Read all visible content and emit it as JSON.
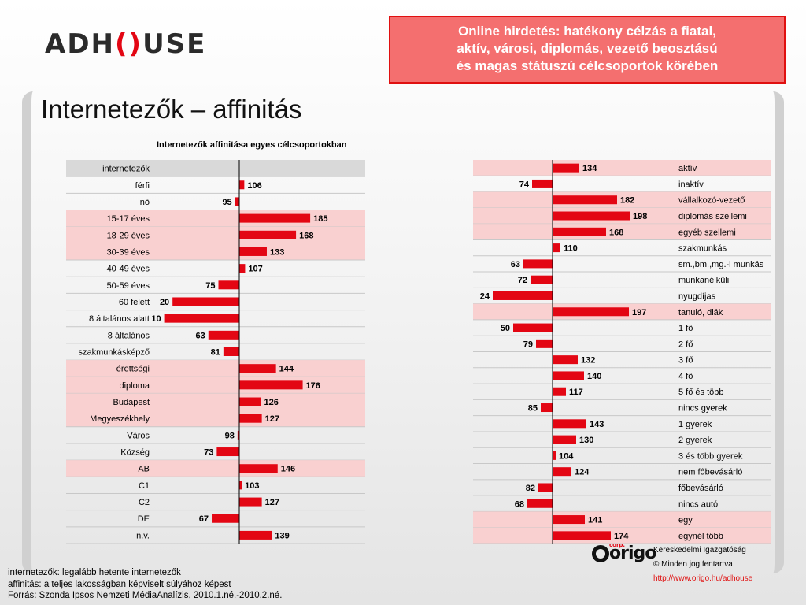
{
  "logo": {
    "before": "ADH",
    "mark": "()",
    "after": "USE"
  },
  "banner": [
    "Online hirdetés: hatékony célzás a fiatal,",
    "aktív, városi, diplomás, vezető beosztású",
    "és magas státuszú célcsoportok körében"
  ],
  "page_title": "Internetezők – affinitás",
  "notes": [
    "internetezők: legalább hetente internetezők",
    "affinitás: a teljes lakosságban képviselt súlyához képest",
    "Forrás: Szonda Ipsos Nemzeti MédiaAnalízis, 2010.1.né.-2010.2.né."
  ],
  "corp": {
    "logo_text": "origo",
    "logo_small": "corp.",
    "lines": [
      "Kereskedelmi Igazgatóság",
      "© Minden jog fentartva",
      "http://www.origo.hu/adhouse"
    ]
  },
  "colors": {
    "bar": "#e30613",
    "highlight": "#f9d0d0",
    "header_gray": "#d9d9d9",
    "banner_bg": "#f46f6f",
    "banner_border": "#e01010"
  },
  "chart_data": [
    {
      "type": "bar",
      "orientation": "horizontal",
      "title": "Internetezők affinitása egyes célcsoportokban",
      "baseline": 100,
      "categories": [
        "internetezők",
        "férfi",
        "nő",
        "15-17 éves",
        "18-29 éves",
        "30-39 éves",
        "40-49 éves",
        "50-59 éves",
        "60 felett",
        "8 általános alatt",
        "8 általános",
        "szakmunkásképző",
        "érettségi",
        "diploma",
        "Budapest",
        "Megyeszékhely",
        "Város",
        "Község",
        "AB",
        "C1",
        "C2",
        "DE",
        "n.v."
      ],
      "values": [
        null,
        106,
        95,
        185,
        168,
        133,
        107,
        75,
        20,
        10,
        63,
        81,
        144,
        176,
        126,
        127,
        98,
        73,
        146,
        103,
        127,
        67,
        139
      ],
      "highlighted": [
        3,
        4,
        5,
        12,
        13,
        14,
        15,
        18
      ]
    },
    {
      "type": "bar",
      "orientation": "horizontal",
      "baseline": 100,
      "categories": [
        "aktív",
        "inaktív",
        "vállalkozó-vezető",
        "diplomás szellemi",
        "egyéb szellemi",
        "szakmunkás",
        "sm.,bm.,mg.-i munkás",
        "munkanélküli",
        "nyugdíjas",
        "tanuló, diák",
        "1 fő",
        "2 fő",
        "3 fő",
        "4 fő",
        "5 fő és több",
        "nincs gyerek",
        "1 gyerek",
        "2 gyerek",
        "3 és több gyerek",
        "nem főbevásárló",
        "főbevásárló",
        "nincs autó",
        "egy",
        "egynél több"
      ],
      "values": [
        134,
        74,
        182,
        198,
        168,
        110,
        63,
        72,
        24,
        197,
        50,
        79,
        132,
        140,
        117,
        85,
        143,
        130,
        104,
        124,
        82,
        68,
        141,
        174
      ],
      "highlighted": [
        0,
        2,
        3,
        4,
        9,
        22,
        23
      ]
    }
  ]
}
